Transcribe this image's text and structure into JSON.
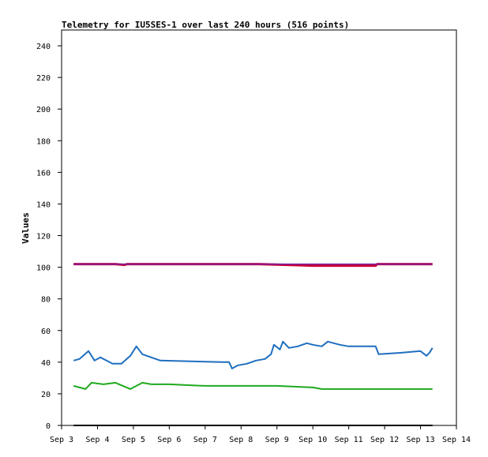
{
  "chart_data": {
    "type": "line",
    "title": "Telemetry for IU5SES-1 over last 240 hours (516 points)",
    "xlabel": "",
    "ylabel": "Values",
    "ylim": [
      0,
      250
    ],
    "xlim": [
      "2023-09-03T00:00",
      "2023-09-14T00:00"
    ],
    "yticks": [
      0,
      20,
      40,
      60,
      80,
      100,
      120,
      140,
      160,
      180,
      200,
      220,
      240
    ],
    "xticks": [
      "Sep 3",
      "Sep 4",
      "Sep 5",
      "Sep 6",
      "Sep 7",
      "Sep 8",
      "Sep 9",
      "Sep 10",
      "Sep 11",
      "Sep 12",
      "Sep 13",
      "Sep 14"
    ],
    "grid": false,
    "legend": "none",
    "series": [
      {
        "color": "#cc0033",
        "width": 3,
        "points": [
          [
            "2023-09-03T08:00",
            102
          ],
          [
            "2023-09-04T12:00",
            102
          ],
          [
            "2023-09-04T18:00",
            101.5
          ],
          [
            "2023-09-04T20:00",
            102
          ],
          [
            "2023-09-08T12:00",
            102
          ],
          [
            "2023-09-10T00:00",
            101
          ],
          [
            "2023-09-11T18:00",
            101
          ],
          [
            "2023-09-11T19:00",
            102
          ],
          [
            "2023-09-13T08:00",
            102
          ]
        ]
      },
      {
        "color": "#7a1fa2",
        "width": 1.5,
        "points": [
          [
            "2023-09-03T08:00",
            102
          ],
          [
            "2023-09-13T08:00",
            102
          ]
        ]
      },
      {
        "color": "#1f6fbf",
        "width": 2,
        "points": [
          [
            "2023-09-03T08:00",
            41
          ],
          [
            "2023-09-03T12:00",
            42
          ],
          [
            "2023-09-03T18:00",
            47
          ],
          [
            "2023-09-03T22:00",
            41
          ],
          [
            "2023-09-04T02:00",
            43
          ],
          [
            "2023-09-04T06:00",
            41
          ],
          [
            "2023-09-04T10:00",
            39
          ],
          [
            "2023-09-04T16:00",
            39
          ],
          [
            "2023-09-04T22:00",
            44
          ],
          [
            "2023-09-05T02:00",
            50
          ],
          [
            "2023-09-05T06:00",
            45
          ],
          [
            "2023-09-05T12:00",
            43
          ],
          [
            "2023-09-05T18:00",
            41
          ],
          [
            "2023-09-07T12:00",
            40
          ],
          [
            "2023-09-07T16:00",
            40
          ],
          [
            "2023-09-07T18:00",
            36
          ],
          [
            "2023-09-07T22:00",
            38
          ],
          [
            "2023-09-08T04:00",
            39
          ],
          [
            "2023-09-08T10:00",
            41
          ],
          [
            "2023-09-08T16:00",
            42
          ],
          [
            "2023-09-08T20:00",
            45
          ],
          [
            "2023-09-08T22:00",
            51
          ],
          [
            "2023-09-09T02:00",
            48
          ],
          [
            "2023-09-09T04:00",
            53
          ],
          [
            "2023-09-09T08:00",
            49
          ],
          [
            "2023-09-09T14:00",
            50
          ],
          [
            "2023-09-09T20:00",
            52
          ],
          [
            "2023-09-10T00:00",
            51
          ],
          [
            "2023-09-10T06:00",
            50
          ],
          [
            "2023-09-10T10:00",
            53
          ],
          [
            "2023-09-10T18:00",
            51
          ],
          [
            "2023-09-11T00:00",
            50
          ],
          [
            "2023-09-11T18:00",
            50
          ],
          [
            "2023-09-11T20:00",
            45
          ],
          [
            "2023-09-12T12:00",
            46
          ],
          [
            "2023-09-13T00:00",
            47
          ],
          [
            "2023-09-13T04:00",
            44
          ],
          [
            "2023-09-13T06:00",
            46
          ],
          [
            "2023-09-13T08:00",
            49
          ]
        ]
      },
      {
        "color": "#1faa1f",
        "width": 2,
        "points": [
          [
            "2023-09-03T08:00",
            25
          ],
          [
            "2023-09-03T16:00",
            23
          ],
          [
            "2023-09-03T20:00",
            27
          ],
          [
            "2023-09-04T04:00",
            26
          ],
          [
            "2023-09-04T12:00",
            27
          ],
          [
            "2023-09-04T22:00",
            23
          ],
          [
            "2023-09-05T06:00",
            27
          ],
          [
            "2023-09-05T12:00",
            26
          ],
          [
            "2023-09-06T00:00",
            26
          ],
          [
            "2023-09-07T00:00",
            25
          ],
          [
            "2023-09-08T00:00",
            25
          ],
          [
            "2023-09-09T00:00",
            25
          ],
          [
            "2023-09-10T00:00",
            24
          ],
          [
            "2023-09-10T06:00",
            23
          ],
          [
            "2023-09-11T00:00",
            23
          ],
          [
            "2023-09-12T00:00",
            23
          ],
          [
            "2023-09-13T00:00",
            23
          ],
          [
            "2023-09-13T08:00",
            23
          ]
        ]
      },
      {
        "color": "#000000",
        "width": 2,
        "points": [
          [
            "2023-09-03T08:00",
            0
          ],
          [
            "2023-09-13T08:00",
            0
          ]
        ]
      }
    ]
  }
}
